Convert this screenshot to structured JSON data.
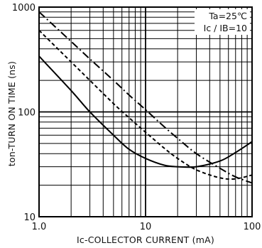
{
  "chart_data": {
    "type": "line",
    "xscale": "log",
    "yscale": "log",
    "xlim": [
      1,
      100
    ],
    "ylim": [
      10,
      1000
    ],
    "grid": true,
    "xlabel": "Ic-COLLECTOR CURRENT  (mA)",
    "ylabel": "ton-TURN ON TIME  (ns)",
    "x_tick_labels": [
      {
        "value": 1,
        "label": "1.0"
      },
      {
        "value": 10,
        "label": "10"
      },
      {
        "value": 100,
        "label": "100"
      }
    ],
    "y_tick_labels": [
      {
        "value": 10,
        "label": "10"
      },
      {
        "value": 100,
        "label": "100"
      },
      {
        "value": 1000,
        "label": "1000"
      }
    ],
    "annotations": [
      "Ta=25℃",
      "Ic / IB=10"
    ],
    "series": [
      {
        "style": "dash-dot",
        "x": [
          1,
          2,
          3,
          5,
          7,
          10,
          15,
          20,
          30,
          50,
          70,
          100
        ],
        "y": [
          900,
          470,
          320,
          200,
          145,
          105,
          72,
          56,
          40,
          29,
          24,
          21
        ]
      },
      {
        "style": "dashed",
        "x": [
          1,
          2,
          3,
          5,
          7,
          10,
          15,
          20,
          30,
          50,
          70,
          100
        ],
        "y": [
          600,
          300,
          200,
          120,
          88,
          64,
          45,
          36,
          28,
          23.5,
          23,
          25
        ]
      },
      {
        "style": "solid",
        "x": [
          1,
          2,
          3,
          5,
          7,
          10,
          15,
          20,
          30,
          50,
          70,
          100
        ],
        "y": [
          340,
          160,
          100,
          60,
          44,
          36,
          31,
          30,
          30,
          34,
          41,
          52
        ]
      }
    ]
  }
}
